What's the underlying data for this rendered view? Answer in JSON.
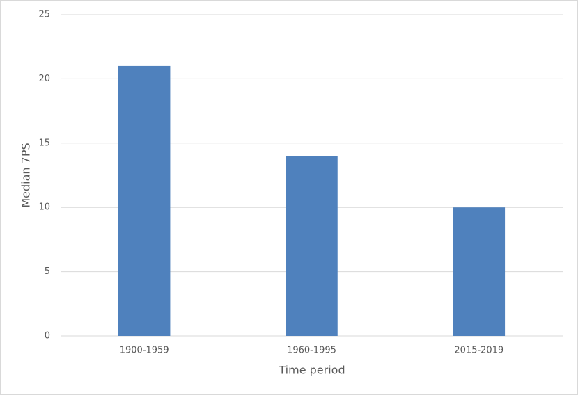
{
  "chart_data": {
    "type": "bar",
    "x_label": "Time period",
    "y_label": "Median 7PS",
    "categories": [
      "1900-1959",
      "1960-1995",
      "2015-2019"
    ],
    "values": [
      21,
      14,
      10
    ],
    "color": "#4f81bd",
    "ylim": [
      0,
      25
    ],
    "yticks": [
      0,
      5,
      10,
      15,
      20,
      25
    ],
    "grid": true
  }
}
